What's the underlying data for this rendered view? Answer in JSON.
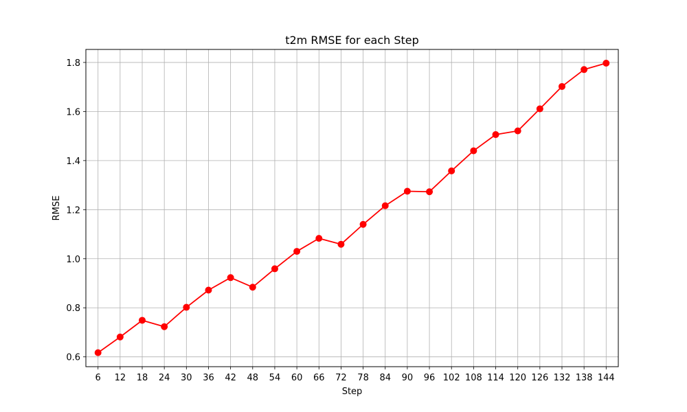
{
  "chart_data": {
    "type": "line",
    "title": "t2m RMSE for each Step",
    "xlabel": "Step",
    "ylabel": "RMSE",
    "x": [
      6,
      12,
      18,
      24,
      30,
      36,
      42,
      48,
      54,
      60,
      66,
      72,
      78,
      84,
      90,
      96,
      102,
      108,
      114,
      120,
      126,
      132,
      138,
      144
    ],
    "xtick_labels": [
      "6",
      "12",
      "18",
      "24",
      "30",
      "36",
      "42",
      "48",
      "54",
      "60",
      "66",
      "72",
      "78",
      "84",
      "90",
      "96",
      "102",
      "108",
      "114",
      "120",
      "126",
      "132",
      "138",
      "144"
    ],
    "series": [
      {
        "color": "#ff0000",
        "marker": "circle",
        "values": [
          0.617,
          0.681,
          0.749,
          0.723,
          0.802,
          0.872,
          0.923,
          0.884,
          0.959,
          1.03,
          1.083,
          1.059,
          1.14,
          1.216,
          1.275,
          1.273,
          1.358,
          1.44,
          1.506,
          1.521,
          1.611,
          1.702,
          1.771,
          1.797
        ]
      }
    ],
    "ylim": [
      0.56,
      1.853
    ],
    "yticks": [
      0.6,
      0.8,
      1.0,
      1.2,
      1.4,
      1.6,
      1.8
    ],
    "ytick_labels": [
      "0.6",
      "0.8",
      "1.0",
      "1.2",
      "1.4",
      "1.6",
      "1.8"
    ],
    "grid": true,
    "legend": "none"
  }
}
